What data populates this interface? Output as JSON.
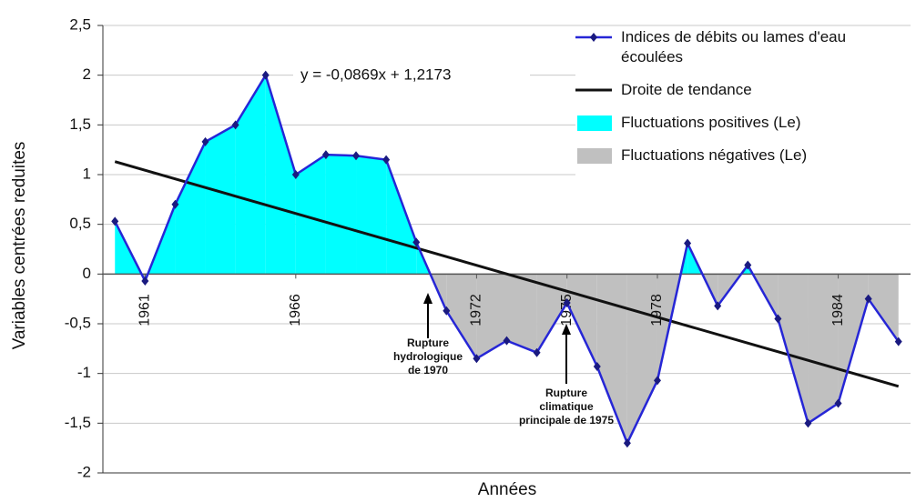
{
  "chart_data": {
    "type": "line",
    "y_label": "Variables centrées reduites",
    "x_label": "Années",
    "x": [
      1960,
      1961,
      1962,
      1963,
      1964,
      1965,
      1966,
      1967,
      1968,
      1969,
      1970,
      1971,
      1972,
      1973,
      1974,
      1975,
      1976,
      1977,
      1978,
      1979,
      1980,
      1981,
      1982,
      1983,
      1984,
      1985,
      1986
    ],
    "series": [
      {
        "name": "Indices de débits ou lames d'eau écoulées",
        "color": "#2626d6",
        "values": [
          0.53,
          -0.07,
          0.7,
          1.33,
          1.5,
          2.0,
          1.0,
          1.2,
          1.19,
          1.15,
          0.32,
          -0.37,
          -0.85,
          -0.67,
          -0.79,
          -0.29,
          -0.93,
          -1.7,
          -1.07,
          0.31,
          -0.32,
          0.09,
          -0.45,
          -1.5,
          -1.3,
          -0.25,
          -0.68
        ]
      }
    ],
    "trend": {
      "name": "Droite de tendance",
      "color": "#111111",
      "equation": "y = -0,0869x + 1,2173",
      "x": [
        1960,
        1986
      ],
      "values": [
        1.1304,
        -1.129
      ]
    },
    "fills": [
      {
        "name": "Fluctuations positives (Le)",
        "color": "#00ffff"
      },
      {
        "name": "Fluctuations négatives (Le)",
        "color": "#c0c0c0"
      }
    ],
    "annotations": [
      {
        "lines": [
          "Rupture",
          "hydrologique",
          "de 1970"
        ]
      },
      {
        "lines": [
          "Rupture",
          "climatique",
          "principale de 1975"
        ]
      }
    ],
    "xlim": [
      1959.6,
      1986.4
    ],
    "xticks": [
      1961,
      1966,
      1972,
      1975,
      1978,
      1984
    ],
    "ylim": [
      -2,
      2.5
    ],
    "yticks": [
      -2,
      {
        "value": -1.5,
        "label": "-1,5"
      },
      -1,
      {
        "value": -0.5,
        "label": "-0,5"
      },
      0,
      {
        "value": 0.5,
        "label": "0,5"
      },
      1,
      {
        "value": 1.5,
        "label": "1,5"
      },
      2,
      {
        "value": 2.5,
        "label": "2,5"
      }
    ],
    "grid": true
  }
}
